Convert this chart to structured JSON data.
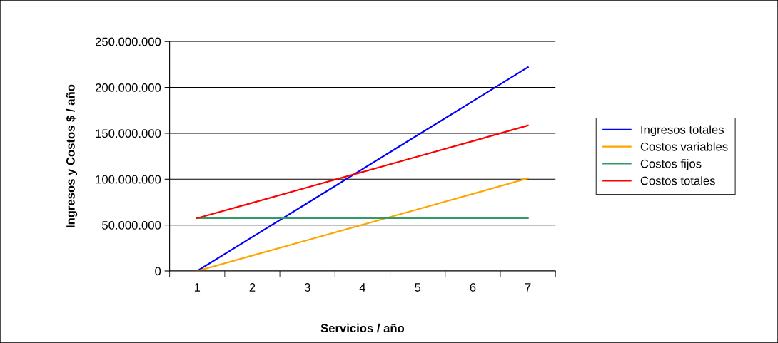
{
  "chart_data": {
    "type": "line",
    "xlabel": "Servicios / año",
    "ylabel": "Ingresos y Costos $ / año",
    "categories": [
      "1",
      "2",
      "3",
      "4",
      "5",
      "6",
      "7"
    ],
    "series": [
      {
        "name": "Ingresos totales",
        "color": "#0000ff",
        "values": [
          0,
          37000000,
          74000000,
          111000000,
          148000000,
          185000000,
          222000000
        ]
      },
      {
        "name": "Costos variables",
        "color": "#ffa500",
        "values": [
          0,
          16800000,
          33600000,
          50400000,
          67200000,
          84000000,
          101000000
        ]
      },
      {
        "name": "Costos fijos",
        "color": "#339966",
        "values": [
          57500000,
          57500000,
          57500000,
          57500000,
          57500000,
          57500000,
          57500000
        ]
      },
      {
        "name": "Costos totales",
        "color": "#ff0000",
        "values": [
          57500000,
          74300000,
          91100000,
          107900000,
          124700000,
          141500000,
          158500000
        ]
      }
    ],
    "ylim": [
      0,
      250000000
    ],
    "yticks": [
      0,
      {
        "value": 50000000,
        "label": "50.000.000"
      },
      {
        "value": 100000000,
        "label": "100.000.000"
      },
      {
        "value": 150000000,
        "label": "150.000.000"
      },
      {
        "value": 200000000,
        "label": "200.000.000"
      },
      {
        "value": 250000000,
        "label": "250.000.000"
      }
    ],
    "grid": "y",
    "legend": "right",
    "marker": "none",
    "line_style": "solid"
  }
}
